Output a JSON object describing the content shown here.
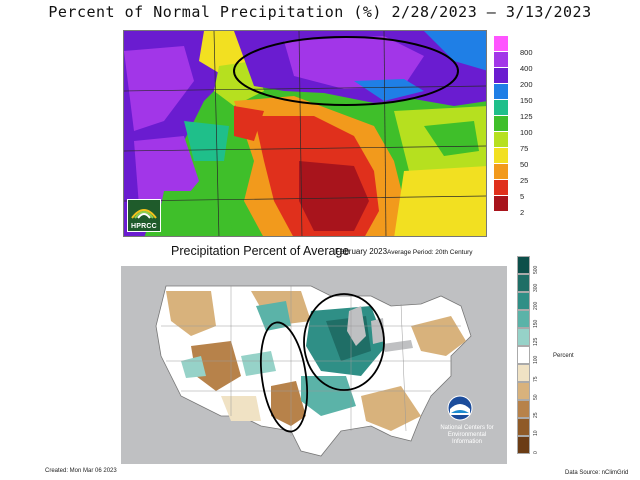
{
  "top_map": {
    "title": "Percent of Normal Precipitation (%)  2/28/2023 – 3/13/2023",
    "legend": [
      {
        "label": "800",
        "color": "#ff55ff"
      },
      {
        "label": "400",
        "color": "#a236e8"
      },
      {
        "label": "200",
        "color": "#6a1cd0"
      },
      {
        "label": "150",
        "color": "#1f7fe6"
      },
      {
        "label": "125",
        "color": "#1fbf8a"
      },
      {
        "label": "100",
        "color": "#3fbf2a"
      },
      {
        "label": "75",
        "color": "#b6e01f"
      },
      {
        "label": "50",
        "color": "#f2e021"
      },
      {
        "label": "25",
        "color": "#f29a1c"
      },
      {
        "label": "5",
        "color": "#e0301c"
      },
      {
        "label": "2",
        "color": "#a8141c"
      }
    ],
    "logo_text": "HPRCC",
    "annotation": "black ellipse around northern plains"
  },
  "bottom_map": {
    "title": "Precipitation Percent of Average",
    "month": "February 2023",
    "period": "Average Period: 20th Century",
    "legend_title": "Percent",
    "legend": [
      {
        "label": "500",
        "color": "#0d4f4a"
      },
      {
        "label": "300",
        "color": "#1f6e66"
      },
      {
        "label": "200",
        "color": "#2f8f86"
      },
      {
        "label": "150",
        "color": "#5bb3a8"
      },
      {
        "label": "125",
        "color": "#96d2c8"
      },
      {
        "label": "100",
        "color": "#ffffff"
      },
      {
        "label": "75",
        "color": "#f0e2c4"
      },
      {
        "label": "50",
        "color": "#d8b27c"
      },
      {
        "label": "25",
        "color": "#b7824a"
      },
      {
        "label": "10",
        "color": "#8f5a27"
      },
      {
        "label": "0",
        "color": "#6b3c15"
      }
    ],
    "agency_text": "National Centers for Environmental Information",
    "created": "Created: Mon Mar 06 2023",
    "source": "Data Source: nClimGrid"
  }
}
